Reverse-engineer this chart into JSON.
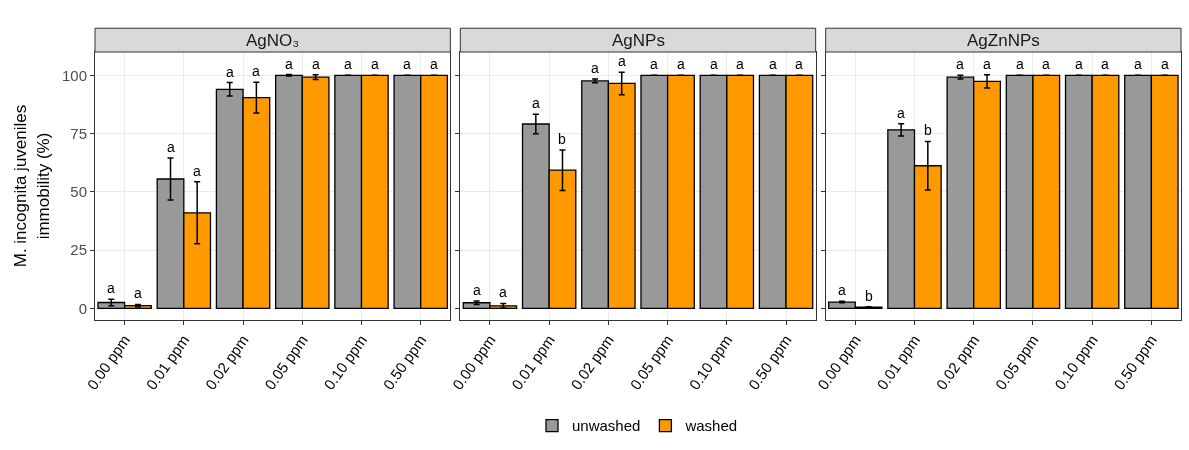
{
  "chart_data": [
    {
      "type": "bar",
      "title": "AgNO₃",
      "ylabel": "M. incognita juveniles\nimmobility (%)",
      "categories": [
        "0.00 ppm",
        "0.01 ppm",
        "0.02 ppm",
        "0.05 ppm",
        "0.10 ppm",
        "0.50 ppm"
      ],
      "series": [
        {
          "name": "unwashed",
          "color": "#999999",
          "values": [
            2.5,
            55.5,
            94,
            100,
            100,
            100
          ],
          "errors": [
            1.4,
            9,
            2.9,
            0.3,
            null,
            null
          ],
          "value_labels": [
            "a",
            "a",
            "a",
            "a",
            "a",
            "a"
          ]
        },
        {
          "name": "washed",
          "color": "#ff9900",
          "values": [
            1.2,
            41,
            90.4,
            99.2,
            100,
            100
          ],
          "errors": [
            0.5,
            13.3,
            6.6,
            1,
            null,
            null
          ],
          "value_labels": [
            "a",
            "a",
            "a",
            "a",
            "a",
            "a"
          ]
        }
      ],
      "ylim": [
        -5,
        110
      ],
      "yticks": [
        0,
        25,
        50,
        75,
        100
      ],
      "grid": true,
      "legend": "bottom"
    },
    {
      "type": "bar",
      "title": "AgNPs",
      "categories": [
        "0.00 ppm",
        "0.01 ppm",
        "0.02 ppm",
        "0.05 ppm",
        "0.10 ppm",
        "0.50 ppm"
      ],
      "series": [
        {
          "color": "#999999",
          "values": [
            2.4,
            79.1,
            97.6,
            100,
            100,
            100
          ],
          "errors": [
            0.8,
            4.2,
            0.8,
            null,
            null,
            null
          ],
          "value_labels": [
            "a",
            "a",
            "a",
            "a",
            "a",
            "a"
          ]
        },
        {
          "color": "#ff9900",
          "values": [
            1.1,
            59.3,
            96.5,
            100,
            100,
            100
          ],
          "errors": [
            1,
            8.7,
            4.8,
            null,
            null,
            null
          ],
          "value_labels": [
            "a",
            "b",
            "a",
            "a",
            "a",
            "a"
          ]
        }
      ],
      "ylim": [
        -5,
        110
      ],
      "yticks": [
        0,
        25,
        50,
        75,
        100
      ],
      "grid": true,
      "tick_labels": "x"
    },
    {
      "type": "bar",
      "title": "AgZnNPs",
      "categories": [
        "0.00 ppm",
        "0.01 ppm",
        "0.02 ppm",
        "0.05 ppm",
        "0.10 ppm",
        "0.50 ppm"
      ],
      "series": [
        {
          "color": "#999999",
          "values": [
            2.7,
            76.6,
            99.2,
            100,
            100,
            100
          ],
          "errors": [
            0.3,
            2.6,
            0.8,
            null,
            null,
            null
          ],
          "value_labels": [
            "a",
            "a",
            "a",
            "a",
            "a",
            "a"
          ]
        },
        {
          "color": "#ff9900",
          "values": [
            0.5,
            61.2,
            97.4,
            100,
            100,
            100
          ],
          "errors": [
            0.2,
            10.4,
            2.8,
            null,
            null,
            null
          ],
          "value_labels": [
            "b",
            "b",
            "a",
            "a",
            "a",
            "a"
          ]
        }
      ],
      "ylim": [
        -5,
        110
      ],
      "yticks": [
        0,
        25,
        50,
        75,
        100
      ],
      "grid": true,
      "tick_labels": "x"
    }
  ]
}
